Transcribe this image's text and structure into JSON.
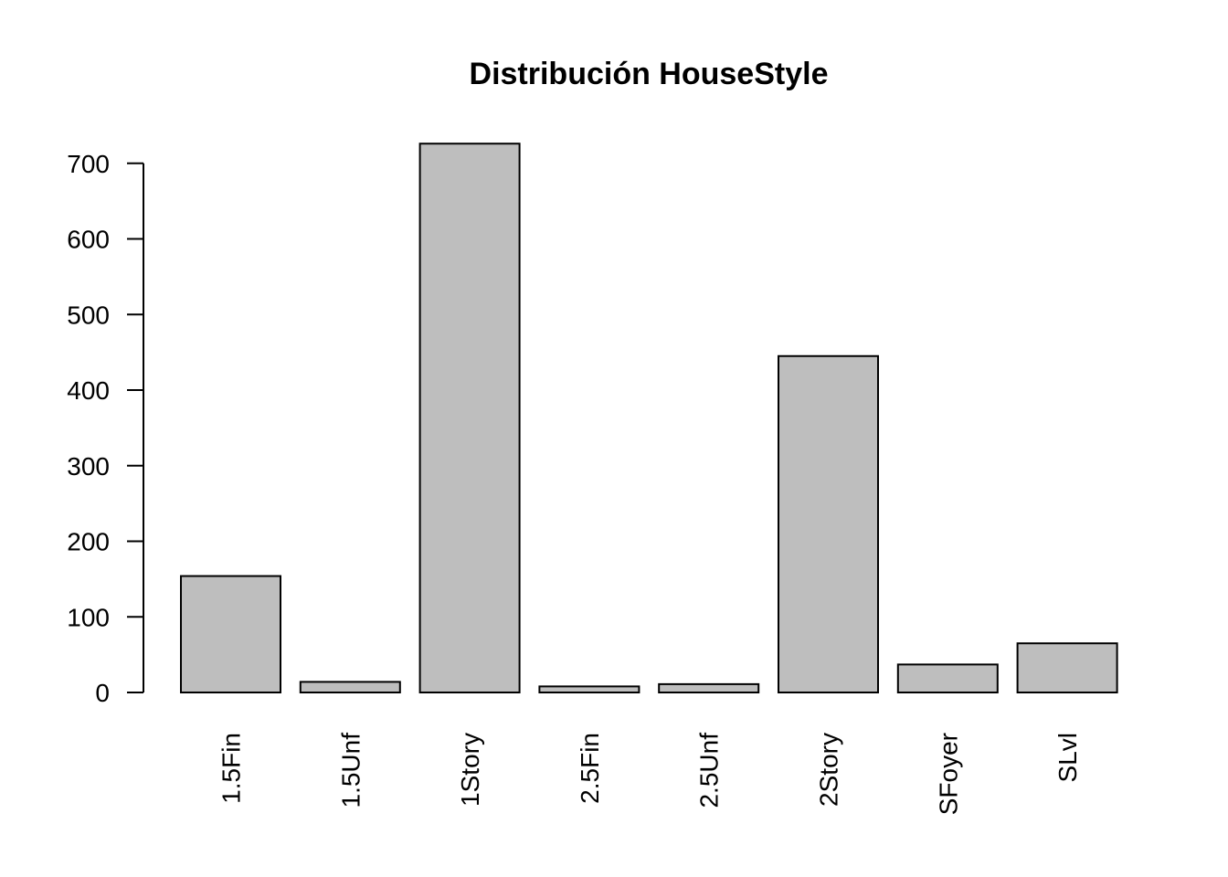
{
  "chart_data": {
    "type": "bar",
    "title": "Distribución HouseStyle",
    "xlabel": "",
    "ylabel": "",
    "categories": [
      "1.5Fin",
      "1.5Unf",
      "1Story",
      "2.5Fin",
      "2.5Unf",
      "2Story",
      "SFoyer",
      "SLvl"
    ],
    "values": [
      154,
      14,
      726,
      8,
      11,
      445,
      37,
      65
    ],
    "ylim": [
      0,
      726
    ],
    "yticks": [
      0,
      100,
      200,
      300,
      400,
      500,
      600,
      700
    ],
    "grid": false,
    "bar_color": "#bebebe",
    "x_tick_label_orientation": "vertical"
  }
}
